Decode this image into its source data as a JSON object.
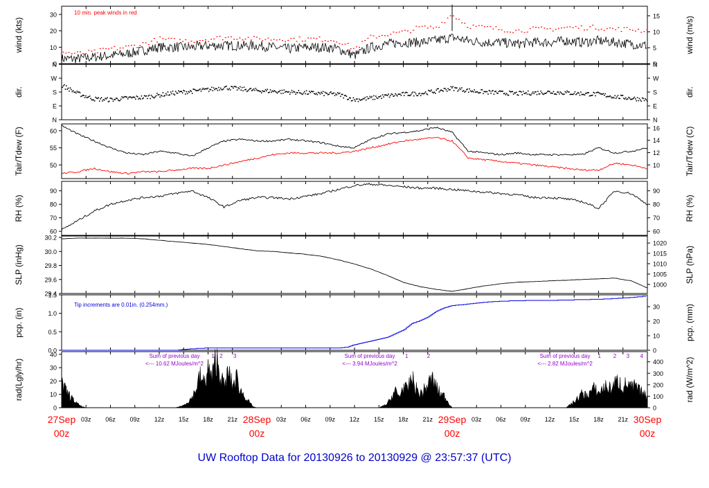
{
  "title": "UW Rooftop Data for 20130926  to  20130929 @ 23:57:37  (UTC)",
  "colors": {
    "frame": "#000000",
    "trace": "#000000",
    "red": "#ff0000",
    "blue": "#0000dd",
    "purple": "#9900cc",
    "title": "#0000cc"
  },
  "x_axis": {
    "range_hours": [
      0,
      72
    ],
    "hour_tick_labels": [
      "03z",
      "06z",
      "09z",
      "12z",
      "15z",
      "18z",
      "21z",
      "03z",
      "06z",
      "09z",
      "12z",
      "15z",
      "18z",
      "21z",
      "03z",
      "06z",
      "09z",
      "12z",
      "15z",
      "18z",
      "21z"
    ],
    "hour_tick_positions": [
      3,
      6,
      9,
      12,
      15,
      18,
      21,
      27,
      30,
      33,
      36,
      39,
      42,
      45,
      51,
      54,
      57,
      60,
      63,
      66,
      69
    ],
    "day_labels": [
      {
        "date": "27Sep",
        "time": "00z",
        "hour": 0
      },
      {
        "date": "28Sep",
        "time": "00z",
        "hour": 24
      },
      {
        "date": "29Sep",
        "time": "00z",
        "hour": 48
      },
      {
        "date": "30Sep",
        "time": "00z",
        "hour": 72
      }
    ]
  },
  "panels": {
    "wind": {
      "left_label": "wind (kts)",
      "right_label": "wind (m/s)",
      "note": "10 min. peak winds in red",
      "left_range": [
        0,
        35
      ],
      "left_ticks": [
        "0",
        "10",
        "20",
        "30"
      ],
      "left_tick_values": [
        0,
        10,
        20,
        30
      ],
      "right_ticks": [
        "0",
        "5",
        "10",
        "15"
      ],
      "right_tick_values": [
        0,
        5,
        10,
        15
      ]
    },
    "dir": {
      "left_label": "dir.",
      "right_label": "dir.",
      "left_range": [
        0,
        360
      ],
      "left_ticks": [
        "N",
        "E",
        "S",
        "W",
        "N"
      ],
      "right_ticks": [
        "N",
        "E",
        "S",
        "W",
        "N"
      ],
      "tick_values": [
        0,
        90,
        180,
        270,
        360
      ]
    },
    "temp": {
      "left_label": "Tair/Tdew (F)",
      "right_label": "Tair/Tdew (C)",
      "left_range": [
        46,
        62
      ],
      "left_ticks": [
        "50",
        "55",
        "60"
      ],
      "left_tick_values": [
        50,
        55,
        60
      ],
      "right_ticks": [
        "10",
        "12",
        "14",
        "16"
      ],
      "right_tick_values": [
        10,
        12,
        14,
        16
      ]
    },
    "rh": {
      "left_label": "RH (%)",
      "right_label": "RH (%)",
      "left_range": [
        57,
        97
      ],
      "left_ticks": [
        "60",
        "70",
        "80",
        "90"
      ],
      "left_tick_values": [
        60,
        70,
        80,
        90
      ],
      "right_ticks": [
        "60",
        "70",
        "80",
        "90"
      ]
    },
    "slp": {
      "left_label": "SLP (inHg)",
      "right_label": "SLP (hPa)",
      "left_range": [
        29.4,
        30.22
      ],
      "left_ticks": [
        "29.4",
        "29.6",
        "29.8",
        "30.0",
        "30.2"
      ],
      "left_tick_values": [
        29.4,
        29.6,
        29.8,
        30.0,
        30.2
      ],
      "right_ticks": [
        "1000",
        "1005",
        "1010",
        "1015",
        "1020"
      ],
      "right_tick_values": [
        1000,
        1005,
        1010,
        1015,
        1020
      ]
    },
    "pcp": {
      "left_label": "pcp. (in)",
      "right_label": "pcp. (mm)",
      "note": "Tip increments are 0.01in. (0.254mm.)",
      "left_range": [
        0,
        1.5
      ],
      "left_ticks": [
        "0.0",
        "0.5",
        "1.0",
        "1.5"
      ],
      "left_tick_values": [
        0,
        0.5,
        1.0,
        1.5
      ],
      "right_ticks": [
        "0",
        "10",
        "20",
        "30"
      ],
      "right_tick_values": [
        0,
        10,
        20,
        30
      ]
    },
    "rad": {
      "left_label": "rad(Lgly/hr)",
      "right_label": "rad (W/m^2)",
      "left_range": [
        0,
        42
      ],
      "left_ticks": [
        "0",
        "10",
        "20",
        "30",
        "40"
      ],
      "left_tick_values": [
        0,
        10,
        20,
        30,
        40
      ],
      "right_ticks": [
        "0",
        "100",
        "200",
        "300",
        "400"
      ],
      "right_tick_values": [
        0,
        100,
        200,
        300,
        400
      ],
      "annotations": [
        {
          "line1": "Sum of previous day",
          "line2": "<--- 10.62 MJoules/m^2",
          "hour": 12
        },
        {
          "line1": "Sum of previous day",
          "line2": "<--- 3.94 MJoules/m^2",
          "hour": 36
        },
        {
          "line1": "Sum of previous day",
          "line2": "<--- 2.82 MJoules/m^2",
          "hour": 60
        }
      ],
      "hour_markers": [
        {
          "label": "1",
          "hour": 18.6
        },
        {
          "label": "2",
          "hour": 19.6
        },
        {
          "label": "3",
          "hour": 21.3
        },
        {
          "label": "1",
          "hour": 42.4
        },
        {
          "label": "2",
          "hour": 45.1
        },
        {
          "label": "1",
          "hour": 66.1
        },
        {
          "label": "2",
          "hour": 68.0
        },
        {
          "label": "3",
          "hour": 69.6
        },
        {
          "label": "4",
          "hour": 71.3
        }
      ]
    }
  },
  "chart_data": [
    {
      "type": "line",
      "panel": "wind",
      "series": [
        {
          "name": "10 min. peak winds",
          "color": "#ff0000",
          "x": [
            0,
            2,
            4,
            6,
            8,
            10,
            12,
            14,
            16,
            18,
            20,
            22,
            24,
            26,
            28,
            30,
            32,
            34,
            36,
            38,
            40,
            42,
            44,
            46,
            48,
            50,
            52,
            54,
            56,
            58,
            60,
            62,
            64,
            66,
            68,
            70,
            72
          ],
          "y": [
            7,
            6,
            7,
            9,
            10,
            12,
            15,
            14,
            14,
            15,
            16,
            16,
            15,
            15,
            15,
            15,
            15,
            14,
            9,
            16,
            18,
            19,
            22,
            22,
            30,
            23,
            22,
            21,
            20,
            21,
            21,
            22,
            22,
            22,
            21,
            21,
            20
          ]
        },
        {
          "x": [
            0,
            2,
            4,
            6,
            8,
            10,
            12,
            14,
            16,
            18,
            20,
            22,
            24,
            26,
            28,
            30,
            32,
            34,
            36,
            38,
            40,
            42,
            44,
            46,
            48,
            50,
            52,
            54,
            56,
            58,
            60,
            62,
            64,
            66,
            68,
            70,
            72
          ],
          "y": [
            3,
            3,
            4,
            5,
            6,
            8,
            10,
            10,
            10,
            11,
            11,
            11,
            11,
            10,
            9,
            10,
            10,
            9,
            5,
            10,
            12,
            13,
            13,
            14,
            16,
            14,
            13,
            13,
            12,
            13,
            13,
            14,
            13,
            14,
            13,
            12,
            11
          ]
        }
      ]
    },
    {
      "type": "scatter",
      "panel": "dir",
      "x": [
        0,
        2,
        4,
        6,
        8,
        10,
        12,
        14,
        16,
        18,
        20,
        22,
        24,
        26,
        28,
        30,
        32,
        34,
        36,
        38,
        40,
        42,
        44,
        46,
        48,
        50,
        52,
        54,
        56,
        58,
        60,
        62,
        64,
        66,
        68,
        70,
        72
      ],
      "y": [
        225,
        170,
        135,
        130,
        140,
        145,
        160,
        175,
        185,
        195,
        210,
        200,
        190,
        185,
        180,
        175,
        170,
        165,
        130,
        140,
        155,
        165,
        170,
        185,
        205,
        190,
        180,
        175,
        170,
        175,
        180,
        175,
        170,
        165,
        150,
        140,
        130
      ]
    },
    {
      "type": "line",
      "panel": "temp",
      "series": [
        {
          "x": [
            0,
            2,
            4,
            6,
            8,
            10,
            12,
            14,
            16,
            18,
            20,
            22,
            24,
            26,
            28,
            30,
            32,
            34,
            36,
            38,
            40,
            42,
            44,
            46,
            48,
            50,
            52,
            54,
            56,
            58,
            60,
            62,
            64,
            66,
            68,
            70,
            72
          ],
          "y": [
            61.5,
            59,
            57,
            55,
            53.5,
            53,
            54,
            53.5,
            52.5,
            55,
            57,
            57.5,
            57,
            57,
            57.5,
            57,
            56.5,
            55.5,
            55,
            57.5,
            59,
            59.5,
            60,
            61,
            59.5,
            54,
            53.5,
            53,
            53.5,
            53,
            53,
            53,
            53,
            55,
            53.5,
            54,
            55
          ]
        },
        {
          "x": [
            0,
            2,
            4,
            6,
            8,
            10,
            12,
            14,
            16,
            18,
            20,
            22,
            24,
            26,
            28,
            30,
            32,
            34,
            36,
            38,
            40,
            42,
            44,
            46,
            48,
            50,
            52,
            54,
            56,
            58,
            60,
            62,
            64,
            66,
            68,
            70,
            72
          ],
          "y": [
            47.5,
            48,
            49,
            48,
            47.5,
            48,
            48,
            48.5,
            49,
            49,
            50,
            51,
            52,
            53,
            53.5,
            53.5,
            53.5,
            53.5,
            54,
            55,
            56,
            57,
            57.5,
            58,
            57,
            52,
            51.5,
            51,
            50.5,
            50,
            49.5,
            49,
            48.5,
            48.5,
            50.5,
            50,
            49
          ]
        }
      ]
    },
    {
      "type": "line",
      "panel": "rh",
      "x": [
        0,
        2,
        4,
        6,
        8,
        10,
        12,
        14,
        16,
        18,
        20,
        22,
        24,
        26,
        28,
        30,
        32,
        34,
        36,
        38,
        40,
        42,
        44,
        46,
        48,
        50,
        52,
        54,
        56,
        58,
        60,
        62,
        64,
        66,
        68,
        70,
        72
      ],
      "y": [
        61,
        68,
        75,
        80,
        83,
        85,
        86,
        88,
        90,
        85,
        78,
        83,
        85,
        85,
        84,
        86,
        88,
        91,
        94,
        95,
        94,
        93,
        92,
        92,
        91,
        90,
        89,
        88,
        87,
        85,
        85,
        84,
        82,
        77,
        90,
        88,
        80
      ]
    },
    {
      "type": "line",
      "panel": "slp",
      "x": [
        0,
        2,
        4,
        6,
        8,
        10,
        12,
        14,
        16,
        18,
        20,
        22,
        24,
        26,
        28,
        30,
        32,
        34,
        36,
        38,
        40,
        42,
        44,
        46,
        48,
        50,
        52,
        54,
        56,
        58,
        60,
        62,
        64,
        66,
        68,
        70,
        72
      ],
      "y": [
        30.18,
        30.19,
        30.19,
        30.19,
        30.19,
        30.18,
        30.16,
        30.14,
        30.12,
        30.1,
        30.07,
        30.04,
        30.01,
        30.0,
        29.98,
        29.96,
        29.93,
        29.88,
        29.82,
        29.75,
        29.66,
        29.56,
        29.5,
        29.46,
        29.43,
        29.47,
        29.51,
        29.54,
        29.56,
        29.57,
        29.58,
        29.59,
        29.6,
        29.61,
        29.62,
        29.58,
        29.48
      ]
    },
    {
      "type": "line",
      "panel": "pcp",
      "x": [
        0,
        12,
        14,
        15,
        16,
        18,
        20,
        24,
        30,
        34,
        35,
        36,
        38,
        40,
        42,
        43,
        44,
        45,
        46,
        47,
        48,
        50,
        52,
        54,
        56,
        58,
        60,
        62,
        64,
        66,
        68,
        70,
        72
      ],
      "y": [
        0,
        0,
        0,
        0.02,
        0.04,
        0.06,
        0.06,
        0.06,
        0.06,
        0.06,
        0.08,
        0.15,
        0.25,
        0.35,
        0.55,
        0.72,
        0.8,
        0.9,
        1.05,
        1.15,
        1.21,
        1.25,
        1.3,
        1.33,
        1.34,
        1.35,
        1.35,
        1.36,
        1.37,
        1.38,
        1.4,
        1.43,
        1.47
      ]
    },
    {
      "type": "area",
      "panel": "rad",
      "x": [
        0,
        0.5,
        1,
        1.5,
        2,
        2.5,
        3,
        14,
        15,
        16,
        16.5,
        17,
        17.5,
        18,
        18.5,
        19,
        19.5,
        20,
        20.5,
        21,
        21.5,
        22,
        22.5,
        23,
        23.5,
        24,
        39,
        40,
        40.5,
        41,
        41.5,
        42,
        42.5,
        43,
        43.5,
        44,
        44.5,
        45,
        45.5,
        46,
        46.5,
        47,
        47.5,
        48,
        62,
        63,
        63.5,
        64,
        64.5,
        65,
        65.5,
        66,
        66.5,
        67,
        67.5,
        68,
        68.5,
        69,
        69.5,
        70,
        70.5,
        71,
        71.5,
        72
      ],
      "y": [
        20,
        14,
        10,
        6,
        3,
        1,
        0,
        0,
        2,
        8,
        15,
        26,
        20,
        32,
        24,
        42,
        28,
        17,
        30,
        18,
        25,
        14,
        10,
        5,
        1,
        0,
        0,
        3,
        8,
        14,
        9,
        18,
        14,
        25,
        17,
        11,
        14,
        19,
        24,
        18,
        12,
        10,
        5,
        0,
        0,
        5,
        8,
        12,
        10,
        13,
        16,
        12,
        16,
        18,
        15,
        20,
        22,
        17,
        20,
        16,
        18,
        14,
        12,
        8
      ]
    }
  ]
}
